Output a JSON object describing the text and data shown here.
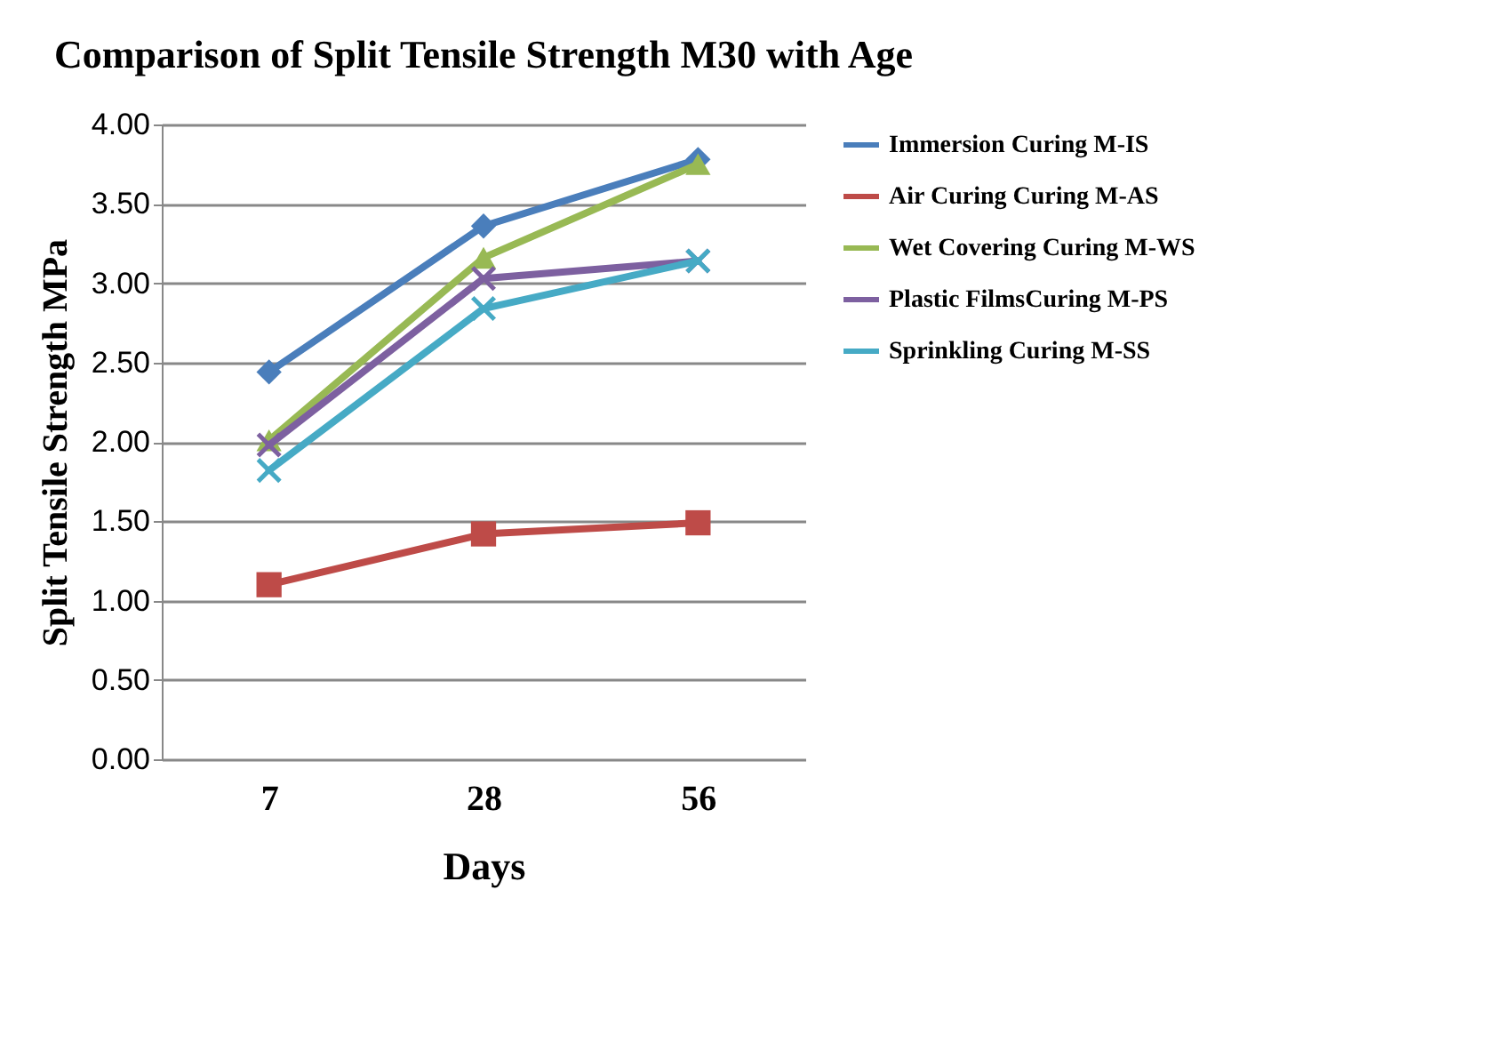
{
  "chart_data": {
    "type": "line",
    "title": "Comparison of Split Tensile Strength M30 with Age",
    "xlabel": "Days",
    "ylabel": "Split Tensile Strength MPa",
    "categories": [
      "7",
      "28",
      "56"
    ],
    "series": [
      {
        "name": "Immersion Curing  M-IS",
        "color": "#4a7ebb",
        "marker": "diamond",
        "values": [
          2.44,
          3.36,
          3.78
        ]
      },
      {
        "name": "Air Curing Curing M-AS",
        "color": "#be4b48",
        "marker": "square",
        "values": [
          1.1,
          1.42,
          1.49
        ]
      },
      {
        "name": "Wet Covering Curing M-WS",
        "color": "#98b954",
        "marker": "triangle",
        "values": [
          2.01,
          3.16,
          3.75
        ]
      },
      {
        "name": "Plastic FilmsCuring  M-PS",
        "color": "#7d60a0",
        "marker": "cross",
        "values": [
          1.98,
          3.03,
          3.14
        ]
      },
      {
        "name": "Sprinkling Curing M-SS",
        "color": "#46aac5",
        "marker": "cross",
        "values": [
          1.82,
          2.84,
          3.14
        ]
      }
    ],
    "ylim": [
      0,
      4
    ],
    "yticks": [
      {
        "value": 0,
        "label": "0.00"
      },
      {
        "value": 0.5,
        "label": "0.50"
      },
      {
        "value": 1,
        "label": "1.00"
      },
      {
        "value": 1.5,
        "label": "1.50"
      },
      {
        "value": 2,
        "label": "2.00"
      },
      {
        "value": 2.5,
        "label": "2.50"
      },
      {
        "value": 3,
        "label": "3.00"
      },
      {
        "value": 3.5,
        "label": "3.50"
      },
      {
        "value": 4,
        "label": "4.00"
      }
    ],
    "grid": "y",
    "legend": "right",
    "line_style": "solid"
  }
}
